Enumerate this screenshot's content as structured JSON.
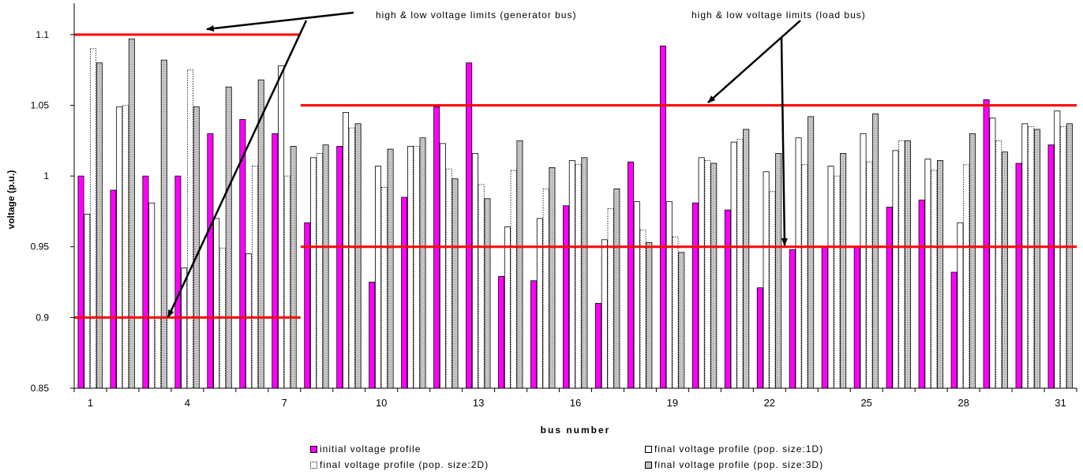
{
  "chart_data": {
    "type": "bar",
    "xlabel": "bus number",
    "ylabel": "voltage (p.u.)",
    "ylim": [
      0.85,
      1.12
    ],
    "yticks": [
      0.85,
      0.9,
      0.95,
      1.0,
      1.05,
      1.1
    ],
    "ytick_labels": [
      "0.85",
      "0.9",
      "0.95",
      "1",
      "1.05",
      "1.1"
    ],
    "categories": [
      1,
      2,
      3,
      4,
      5,
      6,
      7,
      8,
      9,
      10,
      11,
      12,
      13,
      14,
      15,
      16,
      17,
      18,
      19,
      20,
      21,
      22,
      23,
      24,
      25,
      26,
      27,
      28,
      29,
      30,
      31
    ],
    "xtick_labels": [
      "1",
      "4",
      "7",
      "10",
      "13",
      "16",
      "19",
      "22",
      "25",
      "28",
      "31"
    ],
    "xtick_positions": [
      1,
      4,
      7,
      10,
      13,
      16,
      19,
      22,
      25,
      28,
      31
    ],
    "series": [
      {
        "name": "initial voltage profile",
        "color": "#ff00ff",
        "values": [
          1.0,
          0.99,
          1.0,
          1.0,
          1.03,
          1.04,
          1.03,
          0.967,
          1.021,
          0.925,
          0.985,
          1.049,
          1.08,
          0.929,
          0.926,
          0.979,
          0.91,
          1.01,
          1.092,
          0.981,
          0.976,
          0.921,
          0.948,
          0.95,
          0.95,
          0.978,
          0.983,
          0.932,
          1.054,
          1.009,
          1.022
        ]
      },
      {
        "name": "final voltage profile (pop. size:1D)",
        "color": "#ffffff",
        "values": [
          0.973,
          1.049,
          0.981,
          0.935,
          0.97,
          0.945,
          1.078,
          1.013,
          1.045,
          1.007,
          1.021,
          1.023,
          1.016,
          0.964,
          0.97,
          1.011,
          0.955,
          0.982,
          0.982,
          1.013,
          1.024,
          1.003,
          1.027,
          1.007,
          1.03,
          1.018,
          1.012,
          0.967,
          1.041,
          1.037,
          1.046
        ]
      },
      {
        "name": "final voltage profile (pop. size:2D)",
        "color": "#ffffff",
        "values": [
          1.09,
          1.05,
          0.9,
          1.075,
          0.949,
          1.007,
          1.0,
          1.016,
          1.034,
          0.992,
          1.021,
          1.005,
          0.994,
          1.004,
          0.991,
          1.008,
          0.977,
          0.962,
          0.957,
          1.011,
          1.026,
          0.989,
          1.008,
          1.0,
          1.01,
          1.025,
          1.004,
          1.008,
          1.025,
          1.035,
          1.035
        ]
      },
      {
        "name": "final voltage profile (pop. size:3D)",
        "color": "#c0c0c0",
        "values": [
          1.08,
          1.097,
          1.082,
          1.049,
          1.063,
          1.068,
          1.021,
          1.022,
          1.037,
          1.019,
          1.027,
          0.998,
          0.984,
          1.025,
          1.006,
          1.013,
          0.991,
          0.953,
          0.946,
          1.009,
          1.033,
          1.016,
          1.042,
          1.016,
          1.044,
          1.025,
          1.011,
          1.03,
          1.017,
          1.033,
          1.037
        ]
      }
    ],
    "limit_lines": [
      {
        "label": "gen-high",
        "y": 1.1,
        "x_from": 0.5,
        "x_to": 7.5
      },
      {
        "label": "gen-low",
        "y": 0.9,
        "x_from": 0.5,
        "x_to": 7.5
      },
      {
        "label": "load-high",
        "y": 1.05,
        "x_from": 7.5,
        "x_to": 31.5
      },
      {
        "label": "load-low",
        "y": 0.95,
        "x_from": 7.5,
        "x_to": 31.5
      }
    ],
    "limit_color": "#ff0000",
    "annotations": [
      {
        "text": "high & low voltage limits (generator bus)"
      },
      {
        "text": "high & low voltage limits (load bus)"
      }
    ],
    "legend_position": "bottom"
  }
}
